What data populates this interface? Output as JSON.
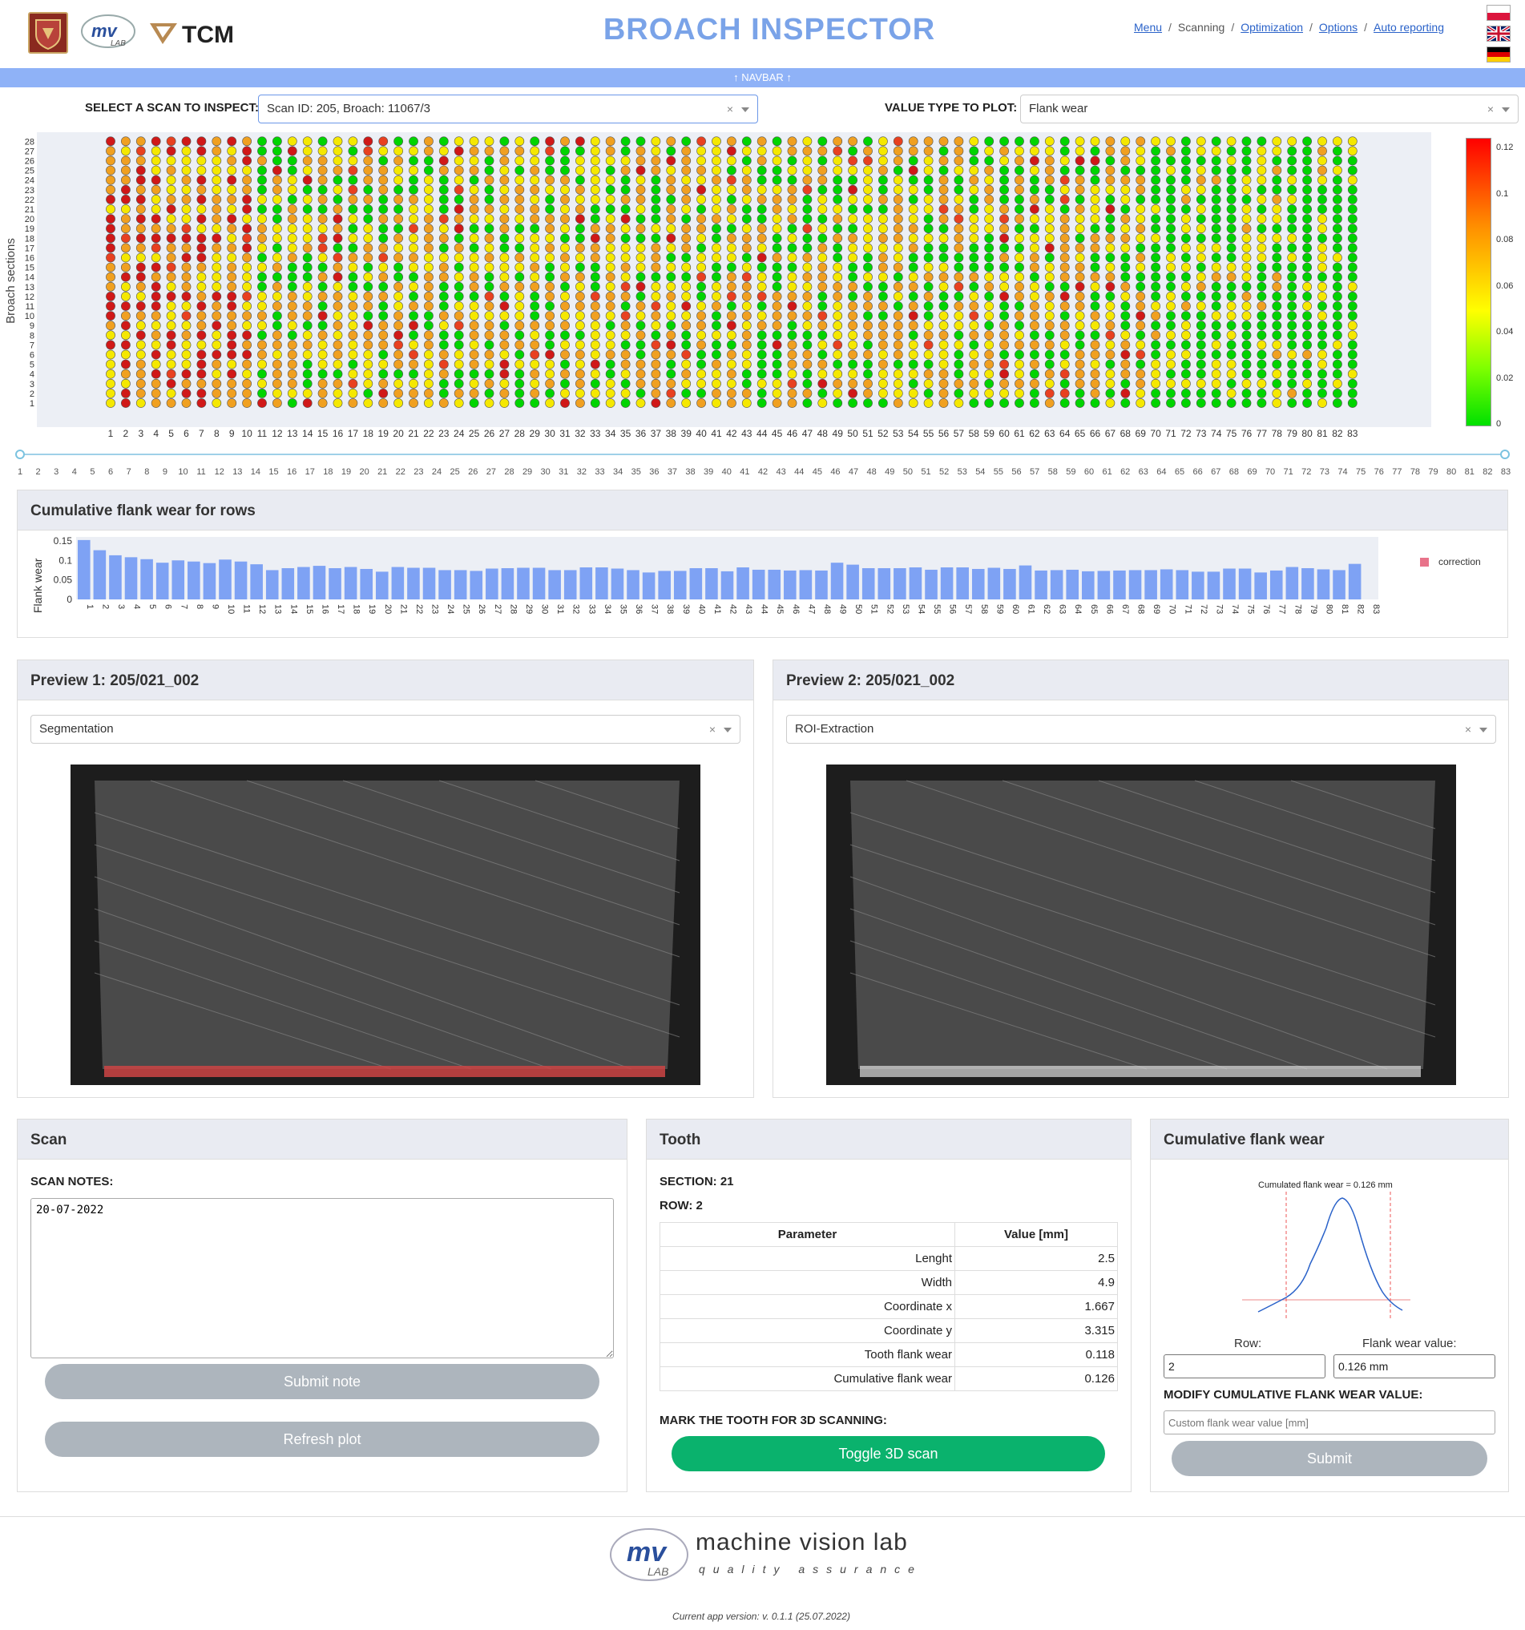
{
  "header": {
    "title": "BROACH INSPECTOR",
    "logos": [
      {
        "name": "university-shield-logo"
      },
      {
        "name": "mvlab-logo",
        "text": "mv LAB"
      },
      {
        "name": "tcm-logo",
        "text": "TCM"
      }
    ],
    "nav": [
      {
        "label": "Menu",
        "link": true
      },
      {
        "label": "Scanning",
        "link": false
      },
      {
        "label": "Optimization",
        "link": true
      },
      {
        "label": "Options",
        "link": true
      },
      {
        "label": "Auto reporting",
        "link": true
      }
    ],
    "nav_separator": "/",
    "flags": [
      "flag-poland-icon",
      "flag-uk-icon",
      "flag-germany-icon"
    ]
  },
  "navbar": {
    "label": "↑ NAVBAR ↑"
  },
  "controls": {
    "scan_label": "SELECT A SCAN TO INSPECT:",
    "scan_value": "Scan ID: 205, Broach: 11067/3",
    "value_label": "VALUE TYPE TO PLOT:",
    "value_value": "Flank wear",
    "clear_symbol": "×"
  },
  "heatmap": {
    "ylabel": "Broach sections",
    "rows": 28,
    "cols": 83,
    "colorbar_ticks": [
      "0.12",
      "0.1",
      "0.08",
      "0.06",
      "0.04",
      "0.02",
      "0"
    ],
    "colors": {
      "green": "#00d400",
      "yellow": "#f5e800",
      "orange": "#f0a020",
      "red": "#e84020",
      "dark_red": "#d01818"
    }
  },
  "slider": {
    "min": 1,
    "max": 83
  },
  "cumulative": {
    "title": "Cumulative flank wear for rows",
    "ylabel": "Flank wear",
    "yticks": [
      "0.15",
      "0.1",
      "0.05",
      "0"
    ],
    "legend": "correction",
    "bar_color": "#7ea2f4",
    "legend_color": "#e8738a"
  },
  "chart_data": {
    "type": "bar",
    "ylabel": "Flank wear",
    "ylim": [
      0,
      0.16
    ],
    "categories": [
      "1",
      "2",
      "3",
      "4",
      "5",
      "6",
      "7",
      "8",
      "9",
      "10",
      "11",
      "12",
      "13",
      "14",
      "15",
      "16",
      "17",
      "18",
      "19",
      "20",
      "21",
      "22",
      "23",
      "24",
      "25",
      "26",
      "27",
      "28",
      "29",
      "30",
      "31",
      "32",
      "33",
      "34",
      "35",
      "36",
      "37",
      "38",
      "39",
      "40",
      "41",
      "42",
      "43",
      "44",
      "45",
      "46",
      "47",
      "48",
      "49",
      "50",
      "51",
      "52",
      "53",
      "54",
      "55",
      "56",
      "57",
      "58",
      "59",
      "60",
      "61",
      "62",
      "63",
      "64",
      "65",
      "66",
      "67",
      "68",
      "69",
      "70",
      "71",
      "72",
      "73",
      "74",
      "75",
      "76",
      "77",
      "78",
      "79",
      "80",
      "81",
      "82",
      "83"
    ],
    "values": [
      0.152,
      0.126,
      0.113,
      0.108,
      0.103,
      0.094,
      0.1,
      0.097,
      0.093,
      0.102,
      0.097,
      0.09,
      0.075,
      0.08,
      0.083,
      0.086,
      0.08,
      0.083,
      0.078,
      0.071,
      0.083,
      0.081,
      0.081,
      0.075,
      0.075,
      0.073,
      0.079,
      0.08,
      0.081,
      0.081,
      0.075,
      0.075,
      0.082,
      0.082,
      0.079,
      0.075,
      0.069,
      0.073,
      0.073,
      0.08,
      0.08,
      0.072,
      0.082,
      0.076,
      0.076,
      0.074,
      0.075,
      0.074,
      0.094,
      0.089,
      0.08,
      0.08,
      0.08,
      0.082,
      0.076,
      0.082,
      0.082,
      0.078,
      0.081,
      0.078,
      0.087,
      0.074,
      0.075,
      0.076,
      0.072,
      0.073,
      0.074,
      0.075,
      0.075,
      0.077,
      0.075,
      0.071,
      0.071,
      0.079,
      0.079,
      0.069,
      0.074,
      0.083,
      0.08,
      0.077,
      0.075,
      0.091,
      0.0
    ],
    "legend": [
      "correction"
    ]
  },
  "preview1": {
    "title": "Preview 1: 205/021_002",
    "mode": "Segmentation"
  },
  "preview2": {
    "title": "Preview 2: 205/021_002",
    "mode": "ROI-Extraction"
  },
  "scan": {
    "title": "Scan",
    "notes_label": "SCAN NOTES:",
    "notes_value": "20-07-2022",
    "submit_label": "Submit note",
    "refresh_label": "Refresh plot"
  },
  "tooth": {
    "title": "Tooth",
    "section": "SECTION: 21",
    "row": "ROW: 2",
    "table_headers": [
      "Parameter",
      "Value [mm]"
    ],
    "table_rows": [
      [
        "Lenght",
        "2.5"
      ],
      [
        "Width",
        "4.9"
      ],
      [
        "Coordinate x",
        "1.667"
      ],
      [
        "Coordinate y",
        "3.315"
      ],
      [
        "Tooth flank wear",
        "0.118"
      ],
      [
        "Cumulative flank wear",
        "0.126"
      ]
    ],
    "mark_label": "MARK THE TOOTH FOR 3D SCANNING:",
    "toggle_label": "Toggle 3D scan"
  },
  "cfw": {
    "title": "Cumulative flank wear",
    "plot_title": "Cumulated flank wear = 0.126 mm",
    "row_label": "Row:",
    "row_value": "2",
    "value_label": "Flank wear value:",
    "value_value": "0.126 mm",
    "modify_label": "MODIFY CUMULATIVE FLANK WEAR VALUE:",
    "custom_placeholder": "Custom flank wear value [mm]",
    "submit_label": "Submit"
  },
  "footer": {
    "brand": "machine vision lab",
    "brand_sub": "quality assurance",
    "version": "Current app version: v. 0.1.1 (25.07.2022)"
  }
}
